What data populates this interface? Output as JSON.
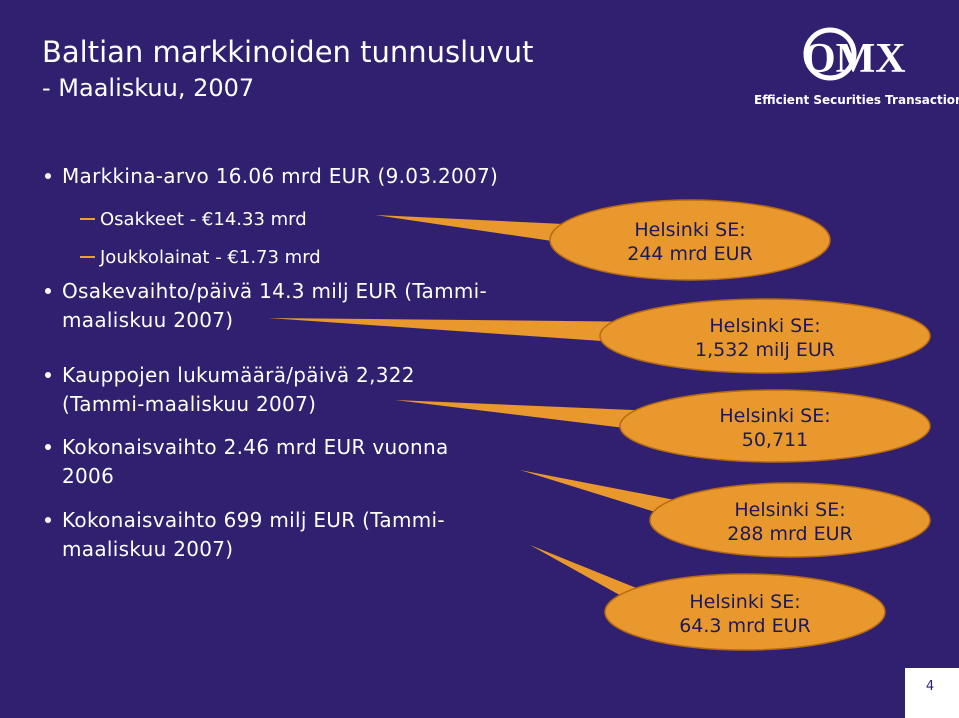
{
  "header": {
    "title": "Baltian markkinoiden tunnusluvut",
    "subtitle": "- Maaliskuu, 2007"
  },
  "logo": {
    "name": "OMX",
    "tagline": "Efficient Securities Transactions"
  },
  "bullets": [
    {
      "lines": [
        "Markkina-arvo 16.06 mrd EUR (9.03.2007)"
      ],
      "subitems": [
        "Osakkeet - €14.33 mrd",
        "Joukkolainat - €1.73 mrd"
      ]
    },
    {
      "lines": [
        "Osakevaihto/päivä 14.3 milj EUR (Tammi-",
        "maaliskuu 2007)"
      ]
    },
    {
      "lines": [
        "Kauppojen lukumäärä/päivä 2,322",
        "(Tammi-maaliskuu 2007)"
      ]
    },
    {
      "lines": [
        "Kokonaisvaihto 2.46 mrd EUR vuonna",
        "2006"
      ]
    },
    {
      "lines": [
        "Kokonaisvaihto 699 milj EUR (Tammi-",
        "maaliskuu 2007)"
      ]
    }
  ],
  "callouts": [
    {
      "lines": [
        "Helsinki SE:",
        "244 mrd EUR"
      ]
    },
    {
      "lines": [
        "Helsinki SE:",
        "1,532 milj EUR"
      ]
    },
    {
      "lines": [
        "Helsinki SE:",
        "50,711"
      ]
    },
    {
      "lines": [
        "Helsinki SE:",
        "288 mrd EUR"
      ]
    },
    {
      "lines": [
        "Helsinki SE:",
        "64.3 mrd EUR"
      ]
    }
  ],
  "page_number": "4"
}
